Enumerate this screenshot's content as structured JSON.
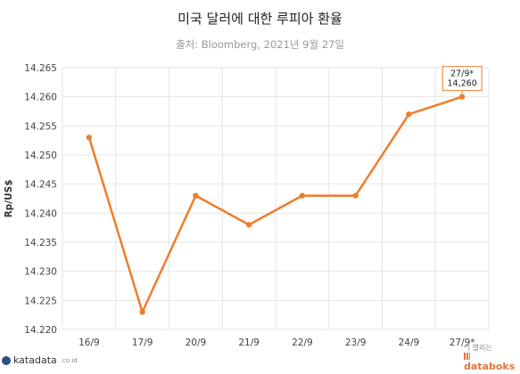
{
  "chart_data": {
    "type": "line",
    "title": "미국 달러에 대한 루피아 환율",
    "subtitle": "출처: Bloomberg, 2021년 9월 27일",
    "ylabel": "Rp/US$",
    "xlabel": "",
    "categories": [
      "16/9",
      "17/9",
      "20/9",
      "21/9",
      "22/9",
      "23/9",
      "24/9",
      "27/9*"
    ],
    "series": [
      {
        "name": "",
        "values": [
          14253,
          14223,
          14243,
          14238,
          14243,
          14243,
          14257,
          14260
        ]
      }
    ],
    "ylim": [
      14220,
      14265
    ],
    "yticks": [
      "14.220",
      "14.225",
      "14.230",
      "14.235",
      "14.240",
      "14.245",
      "14.250",
      "14.255",
      "14.260",
      "14.265"
    ],
    "grid": true,
    "annotation": {
      "label": "27/9*",
      "value": "14,260"
    },
    "colors": {
      "line": "#f07d2a",
      "grid": "#e6e6e6",
      "axis_text": "#444444"
    }
  },
  "branding": {
    "left": "katadata",
    "left_sub": ".co.id",
    "right_top": "*) 열리는",
    "right_main": "databoks"
  }
}
